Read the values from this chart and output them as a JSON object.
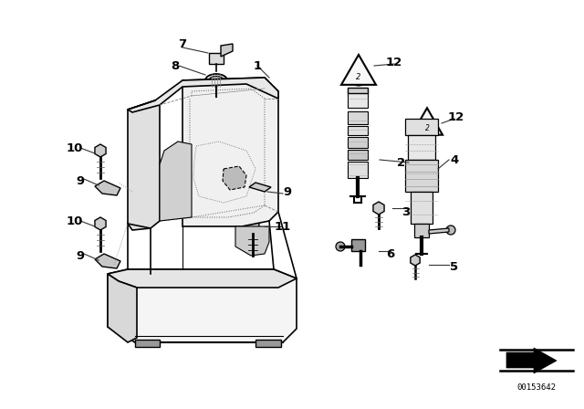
{
  "bg_color": "#ffffff",
  "line_color": "#000000",
  "fig_width": 6.4,
  "fig_height": 4.48,
  "dpi": 100,
  "catalog_number": "00153642"
}
